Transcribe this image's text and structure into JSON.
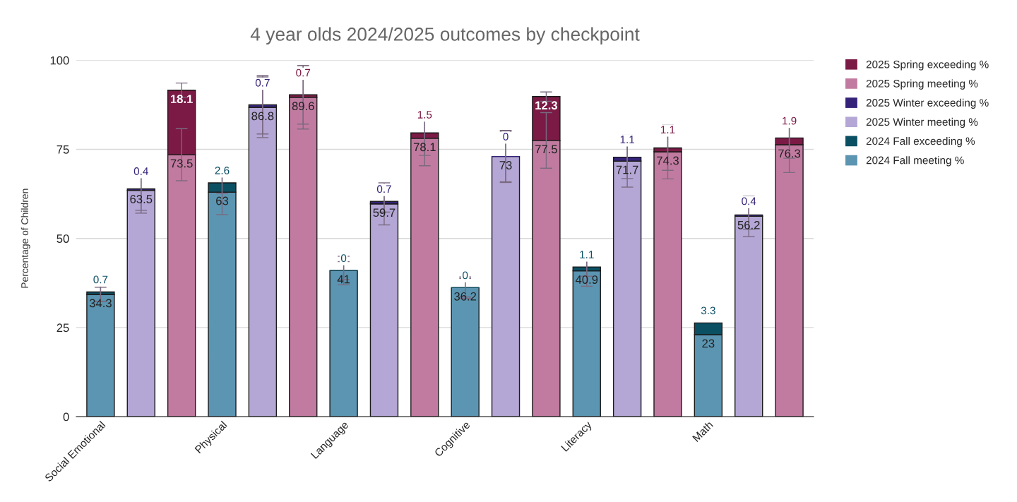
{
  "chart_data": {
    "type": "bar",
    "title": "4 year olds 2024/2025 outcomes by checkpoint",
    "ylabel": "Percentage of Children",
    "categories": [
      "Social Emotional",
      null,
      null,
      "Physical",
      null,
      null,
      "Language",
      null,
      null,
      "Cognitive",
      null,
      null,
      "Literacy",
      null,
      null,
      "Math",
      null,
      null
    ],
    "stacked": true,
    "data_labels": true,
    "grid": "y",
    "legend": "top right",
    "ylim": [
      0,
      100
    ],
    "yticks": [
      0,
      25,
      50,
      75,
      100
    ],
    "series": [
      {
        "name": "2024 Fall meeting %",
        "color": "#5b95b1",
        "values": [
          34.3,
          null,
          null,
          63,
          null,
          null,
          41,
          null,
          null,
          36.2,
          null,
          null,
          40.9,
          null,
          null,
          23,
          null,
          null
        ],
        "errors": [
          2,
          null,
          null,
          6.3,
          null,
          null,
          4,
          null,
          null,
          3,
          null,
          null,
          4.3,
          null,
          null,
          null,
          null,
          null
        ]
      },
      {
        "name": "2024 Fall exceeding %",
        "color": "#0b4f63",
        "values": [
          0.7,
          null,
          null,
          2.6,
          null,
          null,
          0,
          null,
          null,
          0,
          null,
          null,
          1.1,
          null,
          null,
          3.3,
          null,
          null
        ],
        "errors": [
          2.7,
          null,
          null,
          3,
          null,
          null,
          2.5,
          null,
          null,
          2.6,
          null,
          null,
          2.6,
          null,
          null,
          null,
          null,
          null
        ]
      },
      {
        "name": "2025 Winter meeting %",
        "color": "#b4a7d6",
        "values": [
          null,
          63.5,
          null,
          null,
          86.8,
          null,
          null,
          59.7,
          null,
          null,
          73,
          null,
          null,
          71.7,
          null,
          null,
          56.2,
          null
        ],
        "errors": [
          null,
          6.4,
          null,
          null,
          8.5,
          null,
          null,
          5.9,
          null,
          null,
          7.3,
          null,
          null,
          7.3,
          null,
          null,
          5.7,
          null
        ]
      },
      {
        "name": "2025 Winter exceeding %",
        "color": "#35237a",
        "values": [
          null,
          0.4,
          null,
          null,
          0.7,
          null,
          null,
          0.7,
          null,
          null,
          0,
          null,
          null,
          1.1,
          null,
          null,
          0.4,
          null
        ],
        "errors": [
          null,
          6,
          null,
          null,
          8.2,
          null,
          null,
          3,
          null,
          null,
          7.1,
          null,
          null,
          6,
          null,
          null,
          4,
          null
        ]
      },
      {
        "name": "2025 Spring meeting %",
        "color": "#c27ba0",
        "values": [
          null,
          null,
          73.5,
          null,
          null,
          89.6,
          null,
          null,
          78.1,
          null,
          null,
          77.5,
          null,
          null,
          74.3,
          null,
          null,
          76.3
        ],
        "errors": [
          null,
          null,
          7.3,
          null,
          null,
          8.9,
          null,
          null,
          7.7,
          null,
          null,
          7.8,
          null,
          null,
          7.6,
          null,
          null,
          7.8
        ]
      },
      {
        "name": "2025 Spring exceeding %",
        "color": "#7a1a45",
        "values": [
          null,
          null,
          18.1,
          null,
          null,
          0.7,
          null,
          null,
          1.5,
          null,
          null,
          12.3,
          null,
          null,
          1.1,
          null,
          null,
          1.9
        ],
        "errors": [
          null,
          null,
          2,
          null,
          null,
          8.2,
          null,
          null,
          6.3,
          null,
          null,
          1.3,
          null,
          null,
          6.3,
          null,
          null,
          5.7
        ]
      }
    ]
  }
}
